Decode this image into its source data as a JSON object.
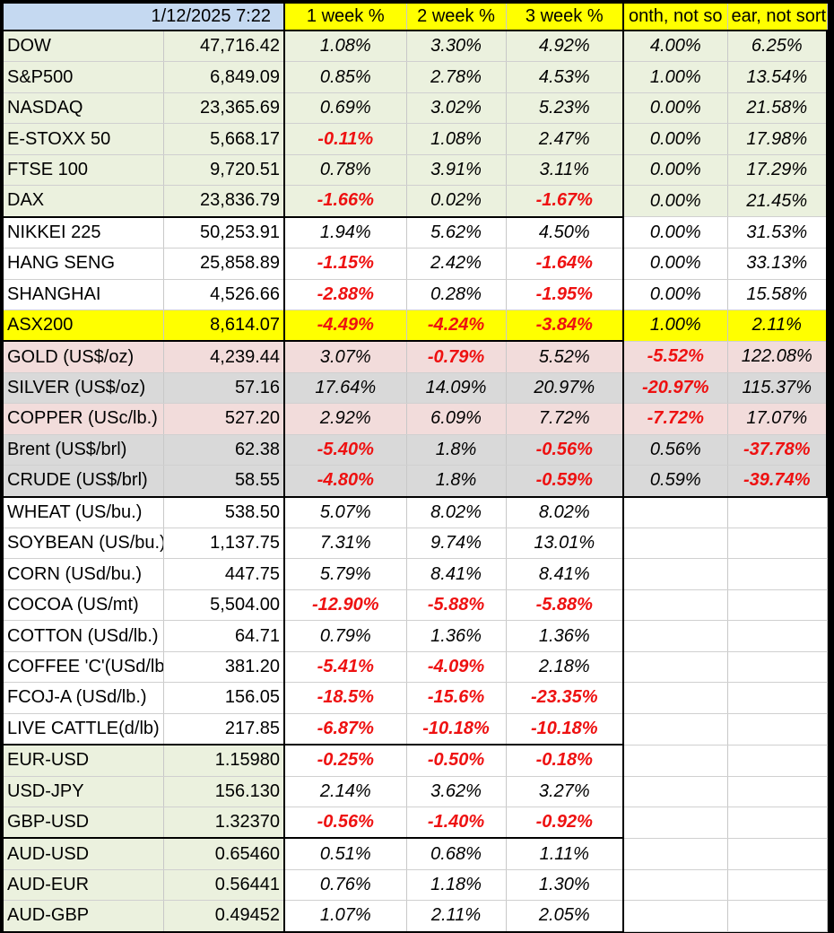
{
  "timestamp": "1/12/2025 7:22",
  "headers": [
    "1 week %",
    "2 week %",
    "3 week %",
    "onth, not so",
    "ear, not sort"
  ],
  "colors": {
    "header_timestamp_bg": "#c5d9f1",
    "header_bg": "#ffff00",
    "equity_bg": "#ebf1de",
    "asx_bg": "#ffff00",
    "metal_pink_bg": "#f2dcdb",
    "gray_bg": "#d9d9d9",
    "white_bg": "#ffffff",
    "negative_text": "#ee1111"
  },
  "rows": [
    {
      "name": "DOW",
      "price": "47,716.42",
      "w1": "1.08%",
      "w2": "3.30%",
      "w3": "4.92%",
      "m": "4.00%",
      "y": "6.25%"
    },
    {
      "name": "S&P500",
      "price": "6,849.09",
      "w1": "0.85%",
      "w2": "2.78%",
      "w3": "4.53%",
      "m": "1.00%",
      "y": "13.54%"
    },
    {
      "name": "NASDAQ",
      "price": "23,365.69",
      "w1": "0.69%",
      "w2": "3.02%",
      "w3": "5.23%",
      "m": "0.00%",
      "y": "21.58%"
    },
    {
      "name": "E-STOXX 50",
      "price": "5,668.17",
      "w1": "-0.11%",
      "w2": "1.08%",
      "w3": "2.47%",
      "m": "0.00%",
      "y": "17.98%"
    },
    {
      "name": "FTSE 100",
      "price": "9,720.51",
      "w1": "0.78%",
      "w2": "3.91%",
      "w3": "3.11%",
      "m": "0.00%",
      "y": "17.29%"
    },
    {
      "name": "DAX",
      "price": "23,836.79",
      "w1": "-1.66%",
      "w2": "0.02%",
      "w3": "-1.67%",
      "m": "0.00%",
      "y": "21.45%"
    },
    {
      "name": "NIKKEI 225",
      "price": "50,253.91",
      "w1": "1.94%",
      "w2": "5.62%",
      "w3": "4.50%",
      "m": "0.00%",
      "y": "31.53%"
    },
    {
      "name": "HANG SENG",
      "price": "25,858.89",
      "w1": "-1.15%",
      "w2": "2.42%",
      "w3": "-1.64%",
      "m": "0.00%",
      "y": "33.13%"
    },
    {
      "name": "SHANGHAI",
      "price": "4,526.66",
      "w1": "-2.88%",
      "w2": "0.28%",
      "w3": "-1.95%",
      "m": "0.00%",
      "y": "15.58%"
    },
    {
      "name": "ASX200",
      "price": "8,614.07",
      "w1": "-4.49%",
      "w2": "-4.24%",
      "w3": "-3.84%",
      "m": "1.00%",
      "y": "2.11%"
    },
    {
      "name": "GOLD (US$/oz)",
      "price": "4,239.44",
      "w1": "3.07%",
      "w2": "-0.79%",
      "w3": "5.52%",
      "m": "-5.52%",
      "y": "122.08%"
    },
    {
      "name": "SILVER (US$/oz)",
      "price": "57.16",
      "w1": "17.64%",
      "w2": "14.09%",
      "w3": "20.97%",
      "m": "-20.97%",
      "y": "115.37%"
    },
    {
      "name": "COPPER (USc/lb.)",
      "price": "527.20",
      "w1": "2.92%",
      "w2": "6.09%",
      "w3": "7.72%",
      "m": "-7.72%",
      "y": "17.07%"
    },
    {
      "name": "Brent (US$/brl)",
      "price": "62.38",
      "w1": "-5.40%",
      "w2": "1.8%",
      "w3": "-0.56%",
      "m": "0.56%",
      "y": "-37.78%"
    },
    {
      "name": "CRUDE (US$/brl)",
      "price": "58.55",
      "w1": "-4.80%",
      "w2": "1.8%",
      "w3": "-0.59%",
      "m": "0.59%",
      "y": "-39.74%"
    },
    {
      "name": "WHEAT (US/bu.)",
      "price": "538.50",
      "w1": "5.07%",
      "w2": "8.02%",
      "w3": "8.02%",
      "m": "",
      "y": ""
    },
    {
      "name": "SOYBEAN (US/bu.)",
      "price": "1,137.75",
      "w1": "7.31%",
      "w2": "9.74%",
      "w3": "13.01%",
      "m": "",
      "y": ""
    },
    {
      "name": "CORN (USd/bu.)",
      "price": "447.75",
      "w1": "5.79%",
      "w2": "8.41%",
      "w3": "8.41%",
      "m": "",
      "y": ""
    },
    {
      "name": "COCOA (US/mt)",
      "price": "5,504.00",
      "w1": "-12.90%",
      "w2": "-5.88%",
      "w3": "-5.88%",
      "m": "",
      "y": ""
    },
    {
      "name": "COTTON (USd/lb.)",
      "price": "64.71",
      "w1": "0.79%",
      "w2": "1.36%",
      "w3": "1.36%",
      "m": "",
      "y": ""
    },
    {
      "name": "COFFEE 'C'(USd/lb.",
      "price": "381.20",
      "w1": "-5.41%",
      "w2": "-4.09%",
      "w3": "2.18%",
      "m": "",
      "y": ""
    },
    {
      "name": "FCOJ-A (USd/lb.)",
      "price": "156.05",
      "w1": "-18.5%",
      "w2": "-15.6%",
      "w3": "-23.35%",
      "m": "",
      "y": ""
    },
    {
      "name": "LIVE CATTLE(d/lb)",
      "price": "217.85",
      "w1": "-6.87%",
      "w2": "-10.18%",
      "w3": "-10.18%",
      "m": "",
      "y": ""
    },
    {
      "name": "EUR-USD",
      "price": "1.15980",
      "w1": "-0.25%",
      "w2": "-0.50%",
      "w3": "-0.18%",
      "m": "",
      "y": ""
    },
    {
      "name": "USD-JPY",
      "price": "156.130",
      "w1": "2.14%",
      "w2": "3.62%",
      "w3": "3.27%",
      "m": "",
      "y": ""
    },
    {
      "name": "GBP-USD",
      "price": "1.32370",
      "w1": "-0.56%",
      "w2": "-1.40%",
      "w3": "-0.92%",
      "m": "",
      "y": ""
    },
    {
      "name": "AUD-USD",
      "price": "0.65460",
      "w1": "0.51%",
      "w2": "0.68%",
      "w3": "1.11%",
      "m": "",
      "y": ""
    },
    {
      "name": "AUD-EUR",
      "price": "0.56441",
      "w1": "0.76%",
      "w2": "1.18%",
      "w3": "1.30%",
      "m": "",
      "y": ""
    },
    {
      "name": "AUD-GBP",
      "price": "0.49452",
      "w1": "1.07%",
      "w2": "2.11%",
      "w3": "2.05%",
      "m": "",
      "y": ""
    }
  ]
}
